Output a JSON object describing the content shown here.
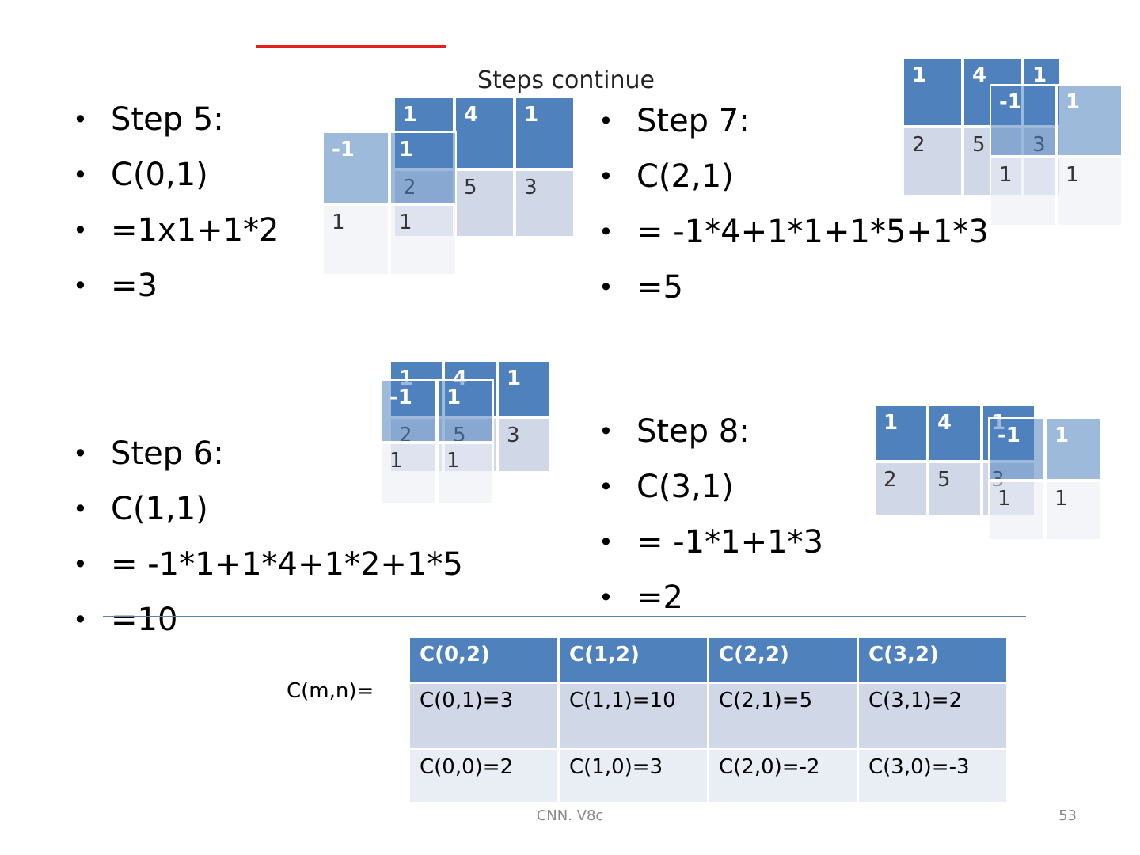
{
  "slide": {
    "title": "Steps continue",
    "footer": "CNN. V8c",
    "page_number": "53",
    "accent_color": "#e3201b",
    "header_color": "#4f81bd"
  },
  "steps": [
    {
      "lines": [
        "Step 5:",
        "C(0,1)",
        "=1x1+1*2",
        "=3"
      ]
    },
    {
      "lines": [
        "Step 6:",
        "C(1,1)",
        "= -1*1+1*4+1*2+1*5",
        "=10"
      ]
    },
    {
      "lines": [
        "Step 7:",
        "C(2,1)",
        "= -1*4+1*1+1*5+1*3",
        "=5"
      ]
    },
    {
      "lines": [
        "Step 8:",
        "C(3,1)",
        "= -1*1+1*3",
        "=2"
      ]
    }
  ],
  "grids": {
    "image": {
      "header": [
        "1",
        "4",
        "1"
      ],
      "body": [
        "2",
        "5",
        "3"
      ]
    },
    "kernel": {
      "header": [
        "-1",
        "1"
      ],
      "body": [
        "1",
        "1"
      ]
    }
  },
  "result": {
    "label": "C(m,n)=",
    "header": [
      "C(0,2)",
      "C(1,2)",
      "C(2,2)",
      "C(3,2)"
    ],
    "rows": [
      [
        "C(0,1)=3",
        "C(1,1)=10",
        "C(2,1)=5",
        "C(3,1)=2"
      ],
      [
        "C(0,0)=2",
        "C(1,0)=3",
        "C(2,0)=-2",
        "C(3,0)=-3"
      ]
    ]
  }
}
